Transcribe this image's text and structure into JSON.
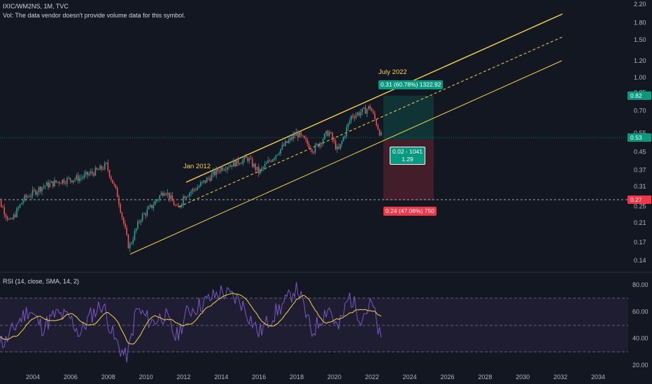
{
  "header": {
    "symbol_line": "IXIC/WM2NS, 1M, TVC",
    "vol_line": "Vol: The data vendor doesn't provide volume data for this symbol."
  },
  "price_axis": {
    "labels": [
      "2.20",
      "1.80",
      "1.50",
      "1.20",
      "1.00",
      "0.85",
      "0.70",
      "0.55",
      "0.45",
      "0.37",
      "0.31",
      "0.25",
      "0.21",
      "0.17",
      "0.14"
    ],
    "scale": "log"
  },
  "rsi_axis": {
    "labels": [
      "80.00",
      "60.00",
      "40.00",
      "20.00"
    ]
  },
  "x_axis": {
    "labels": [
      "2004",
      "2006",
      "2008",
      "2010",
      "2012",
      "2014",
      "2016",
      "2018",
      "2020",
      "2022",
      "2024",
      "2026",
      "2028",
      "2030",
      "2032",
      "2034"
    ]
  },
  "price_tags": {
    "target": "0.82",
    "current": "0.53",
    "stop": "0.27",
    "colors": {
      "target": "#089981",
      "current": "#089981",
      "stop": "#f23645"
    }
  },
  "position": {
    "target_label": "0.31 (60.78%) 1322.92",
    "stop_label": "0.24 (47.06%) 750",
    "ratio_line1": "0.02 - 1041",
    "ratio_line2": "1.29"
  },
  "annotations": {
    "jan_2012": "Jan 2012",
    "july_2022": "July 2022"
  },
  "rsi": {
    "title": "RSI (14, close, SMA, 14, 2)"
  },
  "colors": {
    "background": "#131722",
    "up": "#26a69a",
    "down": "#ef5350",
    "channel": "#f5d547",
    "rsi_line": "#7e57c2",
    "rsi_ma": "#f5d547"
  }
}
